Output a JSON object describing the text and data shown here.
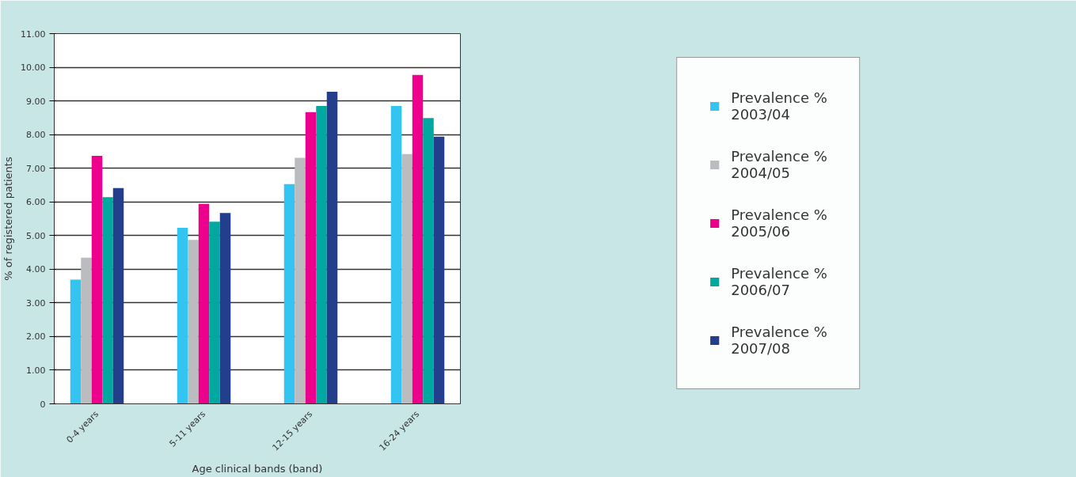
{
  "chart_data": {
    "type": "bar",
    "xlabel": "Age clinical bands (band)",
    "ylabel": "% of registered patients",
    "categories": [
      "0-4 years",
      "5-11 years",
      "12-15 years",
      "16-24 years"
    ],
    "series": [
      {
        "name": "Prevalence %\n2003/04",
        "color": "#33c4f2",
        "values": [
          3.69,
          5.23,
          6.53,
          8.85
        ]
      },
      {
        "name": "Prevalence %\n2004/05",
        "color": "#bbbcc0",
        "values": [
          4.34,
          4.87,
          7.31,
          7.42
        ]
      },
      {
        "name": "Prevalence %\n2005/06",
        "color": "#ec008c",
        "values": [
          7.37,
          5.94,
          8.67,
          9.77
        ]
      },
      {
        "name": "Prevalence %\n2006/07",
        "color": "#00a8a0",
        "values": [
          6.14,
          5.41,
          8.85,
          8.49
        ]
      },
      {
        "name": "Prevalence %\n2007/08",
        "color": "#233e8c",
        "values": [
          6.41,
          5.67,
          9.27,
          7.94
        ]
      }
    ],
    "ylim": [
      0,
      11
    ],
    "yticks": [
      {
        "value": 0,
        "label": "0"
      },
      {
        "value": 1,
        "label": "1.00"
      },
      {
        "value": 2,
        "label": "2.00"
      },
      {
        "value": 3,
        "label": "3.00"
      },
      {
        "value": 4,
        "label": "4.00"
      },
      {
        "value": 5,
        "label": "5.00"
      },
      {
        "value": 6,
        "label": "6.00"
      },
      {
        "value": 7,
        "label": "7.00"
      },
      {
        "value": 8,
        "label": "8.00"
      },
      {
        "value": 9,
        "label": "9.00"
      },
      {
        "value": 10,
        "label": "10.00"
      },
      {
        "value": 11,
        "label": "11.00"
      }
    ],
    "grid": "y",
    "legend": "right"
  }
}
